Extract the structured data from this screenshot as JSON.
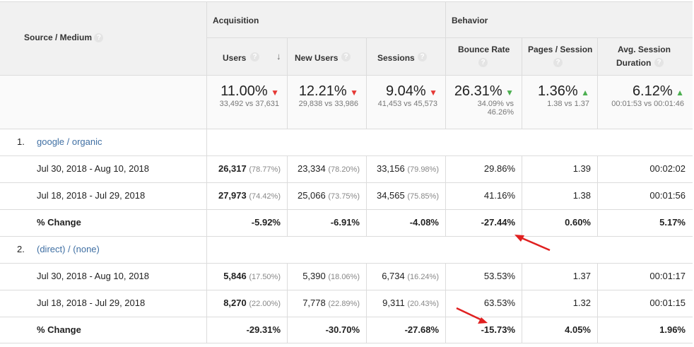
{
  "header": {
    "source_medium_label": "Source / Medium",
    "acquisition_label": "Acquisition",
    "behavior_label": "Behavior",
    "columns": {
      "users": "Users",
      "new_users": "New Users",
      "sessions": "Sessions",
      "bounce_rate": "Bounce Rate",
      "pages_per_session": "Pages / Session",
      "avg_session_line1": "Avg. Session",
      "avg_session_line2": "Duration"
    },
    "help_glyph": "?"
  },
  "summary": {
    "users": {
      "value": "11.00%",
      "sub": "33,492 vs 37,631",
      "direction": "down"
    },
    "new_users": {
      "value": "12.21%",
      "sub": "29,838 vs 33,986",
      "direction": "down"
    },
    "sessions": {
      "value": "9.04%",
      "sub": "41,453 vs 45,573",
      "direction": "down"
    },
    "bounce_rate": {
      "value": "26.31%",
      "sub1": "34.09% vs",
      "sub2": "46.26%",
      "direction": "down-good"
    },
    "pages_per_session": {
      "value": "1.36%",
      "sub": "1.38 vs 1.37",
      "direction": "up"
    },
    "avg_session_duration": {
      "value": "6.12%",
      "sub": "00:01:53 vs 00:01:46",
      "direction": "up"
    }
  },
  "groups": [
    {
      "index": "1.",
      "name": "google / organic",
      "rows": [
        {
          "label": "Jul 30, 2018 - Aug 10, 2018",
          "users": "26,317",
          "users_pct": "(78.77%)",
          "new_users": "23,334",
          "new_users_pct": "(78.20%)",
          "sessions": "33,156",
          "sessions_pct": "(79.98%)",
          "bounce": "29.86%",
          "pages": "1.39",
          "duration": "00:02:02"
        },
        {
          "label": "Jul 18, 2018 - Jul 29, 2018",
          "users": "27,973",
          "users_pct": "(74.42%)",
          "new_users": "25,066",
          "new_users_pct": "(73.75%)",
          "sessions": "34,565",
          "sessions_pct": "(75.85%)",
          "bounce": "41.16%",
          "pages": "1.38",
          "duration": "00:01:56"
        }
      ],
      "change": {
        "label": "% Change",
        "users": "-5.92%",
        "new_users": "-6.91%",
        "sessions": "-4.08%",
        "bounce": "-27.44%",
        "pages": "0.60%",
        "duration": "5.17%"
      }
    },
    {
      "index": "2.",
      "name": "(direct) / (none)",
      "rows": [
        {
          "label": "Jul 30, 2018 - Aug 10, 2018",
          "users": "5,846",
          "users_pct": "(17.50%)",
          "new_users": "5,390",
          "new_users_pct": "(18.06%)",
          "sessions": "6,734",
          "sessions_pct": "(16.24%)",
          "bounce": "53.53%",
          "pages": "1.37",
          "duration": "00:01:17"
        },
        {
          "label": "Jul 18, 2018 - Jul 29, 2018",
          "users": "8,270",
          "users_pct": "(22.00%)",
          "new_users": "7,778",
          "new_users_pct": "(22.89%)",
          "sessions": "9,311",
          "sessions_pct": "(20.43%)",
          "bounce": "63.53%",
          "pages": "1.32",
          "duration": "00:01:15"
        }
      ],
      "change": {
        "label": "% Change",
        "users": "-29.31%",
        "new_users": "-30.70%",
        "sessions": "-27.68%",
        "bounce": "-15.73%",
        "pages": "4.05%",
        "duration": "1.96%"
      }
    }
  ],
  "colors": {
    "annotation_arrow": "#e02020",
    "down_arrow": "#e53935",
    "up_arrow": "#4caf50",
    "link": "#3f6fa3"
  }
}
